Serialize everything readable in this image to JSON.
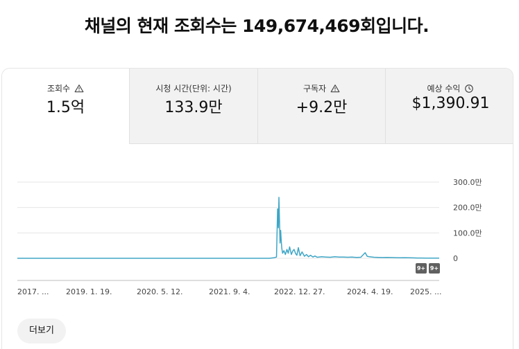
{
  "headline": "채널의 현재 조회수는 149,674,469회입니다.",
  "tabs": [
    {
      "label": "조회수",
      "icon": "warning-icon",
      "value": "1.5억"
    },
    {
      "label": "시청 시간(단위: 시간)",
      "icon": "",
      "value": "133.9만"
    },
    {
      "label": "구독자",
      "icon": "warning-icon",
      "value": "+9.2만"
    },
    {
      "label": "예상 수익",
      "icon": "clock-icon",
      "value": "$1,390.91"
    }
  ],
  "badges": [
    "9+",
    "9+"
  ],
  "more_button": "더보기",
  "colors": {
    "line": "#3ea6c6",
    "grid": "#e5e5e5",
    "badge": "#606060"
  },
  "chart_data": {
    "type": "line",
    "x_ticks": [
      "2017. ...",
      "2019. 1. 19.",
      "2020. 5. 12.",
      "2021. 9. 4.",
      "2022. 12. 27.",
      "2024. 4. 19.",
      "2025. ..."
    ],
    "y_ticks": [
      "300.0만",
      "200.0만",
      "100.0만",
      "0"
    ],
    "y_tick_values": [
      3000000,
      2000000,
      1000000,
      0
    ],
    "ylim": [
      0,
      3000000
    ],
    "x_range": [
      "2017-08-01",
      "2025-09-01"
    ],
    "series": [
      {
        "x": [
          "2017-08-01",
          "2018-06-01",
          "2019-06-01",
          "2020-06-01",
          "2021-06-01",
          "2022-04-01",
          "2022-06-01",
          "2022-07-01",
          "2022-07-20",
          "2022-07-28",
          "2022-08-02",
          "2022-08-06",
          "2022-08-10",
          "2022-08-14",
          "2022-08-18",
          "2022-08-22",
          "2022-08-26",
          "2022-09-01",
          "2022-09-10",
          "2022-09-20",
          "2022-10-01",
          "2022-10-10",
          "2022-10-20",
          "2022-11-01",
          "2022-11-10",
          "2022-11-20",
          "2022-12-01",
          "2022-12-10",
          "2022-12-20",
          "2023-01-01",
          "2023-01-15",
          "2023-02-01",
          "2023-02-15",
          "2023-03-01",
          "2023-03-15",
          "2023-04-01",
          "2023-04-15",
          "2023-05-01",
          "2023-06-01",
          "2023-07-01",
          "2023-08-01",
          "2023-09-01",
          "2023-10-01",
          "2023-11-01",
          "2023-12-01",
          "2024-01-01",
          "2024-02-01",
          "2024-03-01",
          "2024-04-01",
          "2024-04-15",
          "2024-05-01",
          "2024-06-01",
          "2024-07-01",
          "2024-08-01",
          "2024-09-01",
          "2024-10-01",
          "2024-11-01",
          "2024-12-01",
          "2025-01-01",
          "2025-02-01",
          "2025-03-01",
          "2025-04-01",
          "2025-05-01",
          "2025-06-01",
          "2025-07-01",
          "2025-08-01",
          "2025-09-01"
        ],
        "y": [
          0,
          0,
          0,
          0,
          0,
          0,
          0,
          20000,
          50000,
          1950000,
          1200000,
          2400000,
          1500000,
          600000,
          1100000,
          700000,
          400000,
          200000,
          300000,
          150000,
          350000,
          200000,
          450000,
          150000,
          280000,
          350000,
          180000,
          120000,
          420000,
          100000,
          250000,
          80000,
          150000,
          60000,
          120000,
          50000,
          90000,
          40000,
          60000,
          50000,
          40000,
          60000,
          45000,
          50000,
          40000,
          45000,
          35000,
          40000,
          220000,
          80000,
          60000,
          40000,
          35000,
          30000,
          35000,
          30000,
          25000,
          20000,
          25000,
          18000,
          15000,
          12000,
          10000,
          8000,
          8000,
          6000,
          5000
        ]
      }
    ]
  }
}
